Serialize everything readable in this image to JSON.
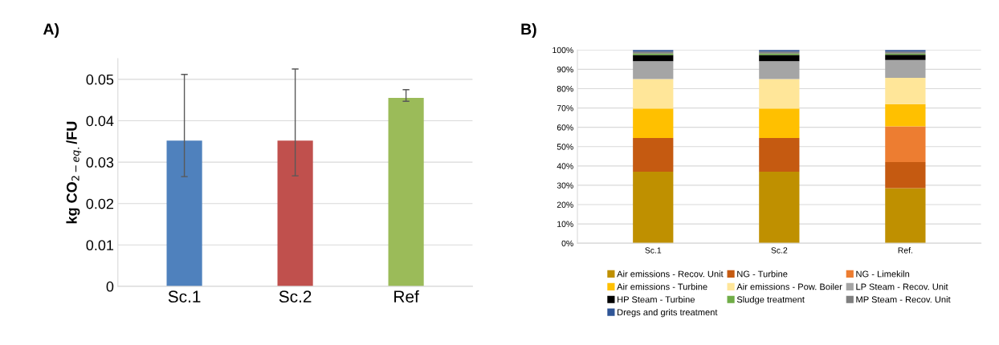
{
  "chart_data": [
    {
      "type": "bar",
      "title": "A)",
      "ylabel": "kg CO$_{2−eq.}$/FU",
      "categories": [
        "Sc.1",
        "Sc.2",
        "Ref"
      ],
      "values": [
        0.0352,
        0.0352,
        0.0455
      ],
      "colors": [
        "#4f81bd",
        "#c0504d",
        "#9bbb59"
      ],
      "errors": [
        [
          0.0265,
          0.0512
        ],
        [
          0.0267,
          0.0525
        ],
        [
          0.0447,
          0.0475
        ]
      ],
      "ylim": [
        0,
        0.055
      ],
      "yticks": [
        0,
        0.01,
        0.02,
        0.03,
        0.04,
        0.05
      ],
      "grid": "y",
      "legend": false
    },
    {
      "type": "bar",
      "title": "B)",
      "stacked": true,
      "categories": [
        "Sc.1",
        "Sc.2",
        "Ref."
      ],
      "grid": "y",
      "legend": "bottom",
      "ylim": [
        0,
        100
      ],
      "yticks": [
        {
          "value": 0,
          "label": "0%"
        },
        {
          "value": 10,
          "label": "10%"
        },
        {
          "value": 20,
          "label": "20%"
        },
        {
          "value": 30,
          "label": "30%"
        },
        {
          "value": 40,
          "label": "40%"
        },
        {
          "value": 50,
          "label": "50%"
        },
        {
          "value": 60,
          "label": "60%"
        },
        {
          "value": 70,
          "label": "70%"
        },
        {
          "value": 80,
          "label": "80%"
        },
        {
          "value": 90,
          "label": "90%"
        },
        {
          "value": 100,
          "label": "100%"
        }
      ],
      "series": [
        {
          "name": "Air emissions - Recov. Unit",
          "color": "#bf9000",
          "values": [
            37.0,
            37.0,
            28.5
          ]
        },
        {
          "name": "NG - Turbine",
          "color": "#c55a11",
          "values": [
            17.5,
            17.5,
            13.5
          ]
        },
        {
          "name": "NG - Limekiln",
          "color": "#ed7d31",
          "values": [
            0,
            0,
            18.5
          ]
        },
        {
          "name": "Air emissions - Turbine",
          "color": "#ffc000",
          "values": [
            15.2,
            15.2,
            11.5
          ]
        },
        {
          "name": "Air emissions - Pow. Boiler",
          "color": "#ffe699",
          "values": [
            15.3,
            15.3,
            13.6
          ]
        },
        {
          "name": "LP Steam - Recov. Unit",
          "color": "#a5a5a5",
          "values": [
            9.2,
            9.2,
            9.2
          ]
        },
        {
          "name": "HP Steam - Turbine",
          "color": "#000000",
          "values": [
            3.2,
            3.2,
            2.8
          ]
        },
        {
          "name": "Sludge treatment",
          "color": "#70ad47",
          "values": [
            0.8,
            0.8,
            0.6
          ]
        },
        {
          "name": "MP Steam - Recov. Unit",
          "color": "#7f7f7f",
          "values": [
            1.0,
            1.0,
            1.0
          ]
        },
        {
          "name": "Dregs and grits treatment",
          "color": "#2f5597",
          "values": [
            0.8,
            0.8,
            0.8
          ]
        }
      ]
    }
  ]
}
